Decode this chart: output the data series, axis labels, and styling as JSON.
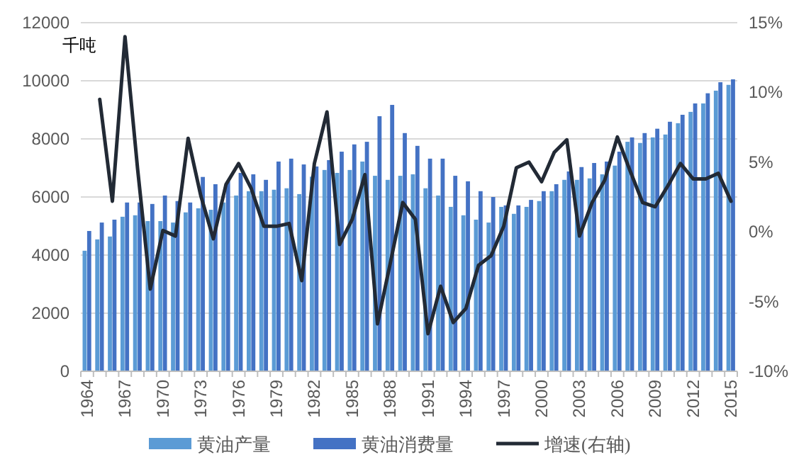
{
  "chart_data": {
    "type": "bar",
    "ylabel": "千吨",
    "categories": [
      "1964",
      null,
      null,
      "1967",
      null,
      null,
      "1970",
      null,
      null,
      "1973",
      null,
      null,
      "1976",
      null,
      null,
      "1979",
      null,
      null,
      "1982",
      null,
      null,
      "1985",
      null,
      null,
      "1988",
      null,
      null,
      "1991",
      null,
      null,
      "1994",
      null,
      null,
      "1997",
      null,
      null,
      "2000",
      null,
      null,
      "2003",
      null,
      null,
      "2006",
      null,
      null,
      "2009",
      null,
      null,
      "2012",
      null,
      null,
      "2015"
    ],
    "series": [
      {
        "name": "黄油产量",
        "color": "#5b9bd5",
        "values": [
          4150,
          4540,
          4640,
          5320,
          5370,
          5170,
          5170,
          5120,
          5470,
          5610,
          5560,
          5810,
          6050,
          6200,
          6200,
          6250,
          6300,
          6100,
          6700,
          6930,
          6830,
          6930,
          7220,
          6730,
          6590,
          6730,
          6780,
          6300,
          6050,
          5660,
          5370,
          5220,
          5120,
          5660,
          5420,
          5660,
          5860,
          6200,
          6590,
          6590,
          6640,
          6780,
          7080,
          7900,
          7860,
          8050,
          8150,
          8540,
          8930,
          9220,
          9660,
          9860
        ]
      },
      {
        "name": "黄油消费量",
        "color": "#4472c4",
        "values": [
          4830,
          5120,
          5220,
          5810,
          5810,
          5760,
          6050,
          5860,
          5810,
          6690,
          6440,
          6540,
          6830,
          6780,
          6590,
          7220,
          7320,
          7120,
          7050,
          7270,
          7560,
          7810,
          7900,
          8780,
          9170,
          8200,
          7760,
          7320,
          7320,
          6730,
          6540,
          6200,
          6000,
          5710,
          5710,
          5900,
          6200,
          6440,
          6880,
          7030,
          7170,
          7220,
          7560,
          8050,
          8200,
          8350,
          8590,
          8830,
          9220,
          9570,
          9950,
          10050
        ]
      },
      {
        "name": "增速(右轴)",
        "type": "line",
        "axis": "y2",
        "color": "#222a35",
        "values": [
          null,
          9.5,
          2.2,
          14.0,
          4.5,
          -4.1,
          0.1,
          -0.3,
          6.7,
          2.6,
          -0.5,
          3.4,
          4.9,
          3.1,
          0.4,
          0.4,
          0.6,
          -3.5,
          4.9,
          8.6,
          -0.9,
          0.9,
          4.1,
          -6.6,
          -2.3,
          2.1,
          0.9,
          -7.3,
          -3.9,
          -6.5,
          -5.5,
          -2.4,
          -1.7,
          0.4,
          4.6,
          5.0,
          3.6,
          5.7,
          6.6,
          -0.3,
          2.1,
          3.7,
          6.8,
          4.4,
          2.1,
          1.8,
          3.3,
          4.9,
          3.8,
          3.8,
          4.2,
          2.2
        ]
      }
    ],
    "ylim": [
      0,
      12000
    ],
    "yticks": [
      0,
      2000,
      4000,
      6000,
      8000,
      10000,
      12000
    ],
    "y2lim": [
      -10,
      15
    ],
    "y2ticks": [
      {
        "value": -10,
        "label": "-10%"
      },
      {
        "value": -5,
        "label": "-5%"
      },
      {
        "value": 0,
        "label": "0%"
      },
      {
        "value": 5,
        "label": "5%"
      },
      {
        "value": 10,
        "label": "10%"
      },
      {
        "value": 15,
        "label": "15%"
      }
    ],
    "grid": "y",
    "legend": "bottom",
    "marker": "none",
    "line_style": "solid"
  }
}
